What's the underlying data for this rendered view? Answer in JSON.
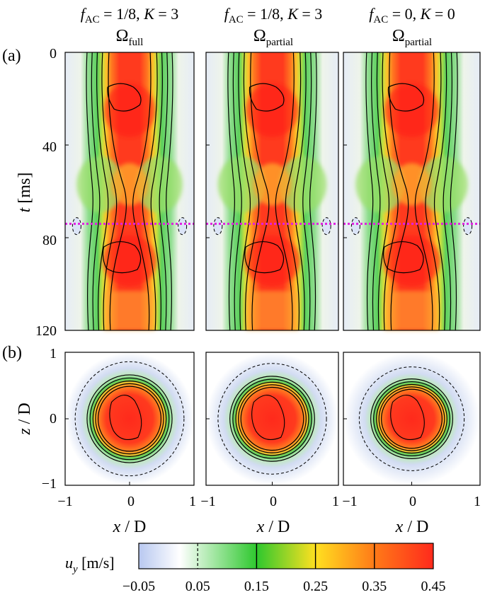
{
  "chart_data": {
    "type": "heatmap",
    "columns": [
      {
        "f": "f",
        "sub": "AC",
        "cond": " = 1/8, ",
        "k": "K",
        "kval": " = 3",
        "omega": "Ω",
        "omega_sub": "full"
      },
      {
        "f": "f",
        "sub": "AC",
        "cond": " = 1/8, ",
        "k": "K",
        "kval": " = 3",
        "omega": "Ω",
        "omega_sub": "partial"
      },
      {
        "f": "f",
        "sub": "AC",
        "cond": " = 0, ",
        "k": "K",
        "kval": " = 0",
        "omega": "Ω",
        "omega_sub": "partial"
      }
    ],
    "panel_a": {
      "label": "(a)",
      "ylabel_var": "t",
      "ylabel_unit": " [ms]",
      "ylim": [
        0,
        120
      ],
      "yticks": [
        "0",
        "40",
        "80",
        "120"
      ],
      "marker_t": 74,
      "marker_color": "#e020e0"
    },
    "panel_b": {
      "label": "(b)",
      "ylabel_var": "z",
      "ylabel_unit": " / D",
      "ylim": [
        -1,
        1
      ],
      "yticks": [
        "1",
        "0",
        "−1"
      ],
      "pad_radius": [
        0.66,
        0.64,
        0.6
      ]
    },
    "xlabel_var": "x",
    "xlabel_unit": " / D",
    "xlim": [
      -1,
      1
    ],
    "xticks": [
      "−1",
      "0",
      "1"
    ],
    "colorbar": {
      "label_var": "u",
      "label_sub": "y",
      "label_unit": " [m/s]",
      "ticks": [
        "−0.05",
        "0.05",
        "0.15",
        "0.25",
        "0.35",
        "0.45"
      ],
      "range": [
        -0.05,
        0.45
      ],
      "stops": [
        {
          "v": -0.05,
          "c": "#b8c8f0"
        },
        {
          "v": 0.02,
          "c": "#ffffff"
        },
        {
          "v": 0.15,
          "c": "#2ec82e"
        },
        {
          "v": 0.25,
          "c": "#ffe020"
        },
        {
          "v": 0.35,
          "c": "#ff7a18"
        },
        {
          "v": 0.45,
          "c": "#ff2a1c"
        }
      ]
    }
  }
}
